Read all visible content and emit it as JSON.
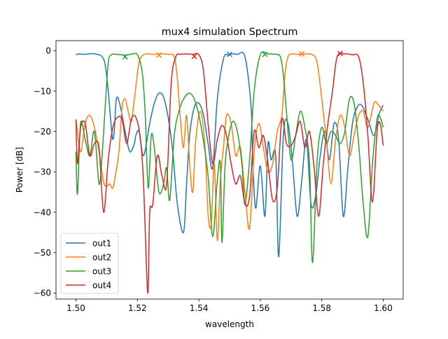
{
  "chart_data": {
    "type": "line",
    "title": "mux4 simulation Spectrum",
    "xlabel": "wavelength",
    "ylabel": "Power [dB]",
    "xlim": [
      1.4935,
      1.6065
    ],
    "ylim": [
      -61.5,
      2.5
    ],
    "xticks": [
      1.5,
      1.52,
      1.54,
      1.56,
      1.58,
      1.6
    ],
    "xtick_labels": [
      "1.50",
      "1.52",
      "1.54",
      "1.56",
      "1.58",
      "1.60"
    ],
    "yticks": [
      0,
      -10,
      -20,
      -30,
      -40,
      -50,
      -60
    ],
    "ytick_labels": [
      "0",
      "−10",
      "−20",
      "−30",
      "−40",
      "−50",
      "−60"
    ],
    "legend_position": "lower-left",
    "series": [
      {
        "name": "out1",
        "color": "#1f77b4",
        "x": [
          1.5,
          1.501,
          1.503,
          1.505,
          1.507,
          1.5085,
          1.5095,
          1.5105,
          1.5115,
          1.512,
          1.5125,
          1.513,
          1.5135,
          1.5145,
          1.516,
          1.5175,
          1.519,
          1.5195,
          1.5205,
          1.522,
          1.524,
          1.5255,
          1.527,
          1.5285,
          1.53,
          1.5315,
          1.533,
          1.535,
          1.536,
          1.537,
          1.5385,
          1.54,
          1.5415,
          1.543,
          1.5445,
          1.546,
          1.548,
          1.5495,
          1.551,
          1.5525,
          1.555,
          1.557,
          1.5575,
          1.5585,
          1.56,
          1.5615,
          1.5625,
          1.5635,
          1.565,
          1.566,
          1.5675,
          1.569,
          1.5705,
          1.572,
          1.5735,
          1.575,
          1.5765,
          1.578,
          1.5795,
          1.581,
          1.5825,
          1.584,
          1.5855,
          1.587,
          1.5885,
          1.59,
          1.5915,
          1.593,
          1.595,
          1.597,
          1.5985,
          1.6
        ],
        "y": [
          -1.0,
          -0.8,
          -0.9,
          -0.7,
          -0.9,
          -1.5,
          -3.5,
          -10.0,
          -19.0,
          -22.0,
          -19.5,
          -13.0,
          -11.5,
          -14.0,
          -20.0,
          -25.0,
          -23.0,
          -21.0,
          -20.0,
          -26.0,
          -18.0,
          -13.0,
          -10.5,
          -11.5,
          -16.5,
          -25.0,
          -38.0,
          -45.0,
          -33.0,
          -21.0,
          -14.0,
          -13.0,
          -16.0,
          -23.0,
          -29.0,
          -12.0,
          -2.0,
          -1.0,
          -0.8,
          -0.9,
          -1.5,
          -14.0,
          -27.0,
          -39.0,
          -28.5,
          -41.0,
          -23.0,
          -27.0,
          -26.0,
          -51.0,
          -21.0,
          -18.0,
          -28.0,
          -41.0,
          -32.0,
          -22.0,
          -38.0,
          -36.0,
          -26.0,
          -20.0,
          -27.0,
          -18.0,
          -22.0,
          -41.0,
          -29.0,
          -18.0,
          -14.0,
          -13.5,
          -17.0,
          -21.0,
          -16.0,
          -13.5
        ]
      },
      {
        "name": "out2",
        "color": "#ff7f0e",
        "x": [
          1.5,
          1.5015,
          1.503,
          1.5045,
          1.506,
          1.5075,
          1.509,
          1.51,
          1.511,
          1.512,
          1.513,
          1.514,
          1.515,
          1.516,
          1.517,
          1.518,
          1.519,
          1.5205,
          1.522,
          1.5235,
          1.525,
          1.5275,
          1.53,
          1.532,
          1.533,
          1.534,
          1.535,
          1.536,
          1.537,
          1.538,
          1.539,
          1.5405,
          1.542,
          1.543,
          1.544,
          1.545,
          1.546,
          1.547,
          1.548,
          1.549,
          1.5505,
          1.552,
          1.5535,
          1.555,
          1.5565,
          1.558,
          1.5595,
          1.561,
          1.5625,
          1.564,
          1.5655,
          1.567,
          1.568,
          1.569,
          1.5705,
          1.572,
          1.5745,
          1.577,
          1.5785,
          1.58,
          1.5815,
          1.583,
          1.5845,
          1.586,
          1.5875,
          1.589,
          1.5905,
          1.592,
          1.5935,
          1.595,
          1.597,
          1.5985,
          1.6
        ],
        "y": [
          -17.0,
          -25.0,
          -18.0,
          -16.0,
          -19.0,
          -25.0,
          -32.5,
          -33.5,
          -33.0,
          -34.0,
          -30.0,
          -25.0,
          -14.0,
          -12.0,
          -15.0,
          -17.5,
          -12.0,
          -3.0,
          -1.0,
          -0.8,
          -0.9,
          -0.8,
          -0.9,
          -1.5,
          -7.0,
          -17.0,
          -24.0,
          -16.0,
          -28.0,
          -35.0,
          -22.0,
          -15.0,
          -24.0,
          -40.5,
          -43.0,
          -28.0,
          -47.0,
          -32.0,
          -24.0,
          -16.0,
          -18.0,
          -26.0,
          -24.0,
          -35.0,
          -44.0,
          -25.0,
          -18.0,
          -24.0,
          -30.0,
          -28.0,
          -20.0,
          -16.0,
          -6.0,
          -1.5,
          -0.8,
          -0.9,
          -0.8,
          -1.0,
          -3.0,
          -12.0,
          -22.0,
          -33.0,
          -22.0,
          -16.0,
          -19.0,
          -26.0,
          -21.0,
          -16.0,
          -15.0,
          -19.0,
          -13.0,
          -13.5,
          -15.0
        ]
      },
      {
        "name": "out3",
        "color": "#2ca02c",
        "x": [
          1.5,
          1.5005,
          1.5015,
          1.503,
          1.5045,
          1.506,
          1.5075,
          1.5085,
          1.5095,
          1.5105,
          1.5115,
          1.5135,
          1.516,
          1.5185,
          1.52,
          1.5215,
          1.5225,
          1.5235,
          1.5245,
          1.5255,
          1.527,
          1.5285,
          1.5295,
          1.5305,
          1.532,
          1.5335,
          1.535,
          1.537,
          1.539,
          1.541,
          1.543,
          1.5445,
          1.546,
          1.547,
          1.5475,
          1.5485,
          1.5495,
          1.551,
          1.5525,
          1.554,
          1.555,
          1.5565,
          1.558,
          1.56,
          1.5625,
          1.565,
          1.5665,
          1.5675,
          1.5685,
          1.57,
          1.5715,
          1.573,
          1.5745,
          1.576,
          1.577,
          1.5785,
          1.58,
          1.5815,
          1.583,
          1.5845,
          1.586,
          1.5875,
          1.589,
          1.5905,
          1.592,
          1.5935,
          1.595,
          1.5965,
          1.598,
          1.599,
          1.6
        ],
        "y": [
          -25.0,
          -35.5,
          -18.0,
          -22.0,
          -26.0,
          -20.0,
          -33.0,
          -26.0,
          -14.0,
          -3.0,
          -1.0,
          -0.9,
          -1.1,
          -0.8,
          -1.0,
          -5.0,
          -15.0,
          -34.0,
          -21.0,
          -24.0,
          -35.0,
          -33.0,
          -29.0,
          -37.0,
          -21.0,
          -15.0,
          -12.0,
          -10.5,
          -13.0,
          -20.0,
          -31.0,
          -46.0,
          -32.0,
          -28.0,
          -47.5,
          -29.0,
          -22.0,
          -17.5,
          -20.0,
          -28.0,
          -38.0,
          -27.0,
          -10.0,
          -1.0,
          -0.8,
          -0.9,
          -1.5,
          -6.0,
          -15.0,
          -27.0,
          -21.0,
          -15.0,
          -19.0,
          -28.0,
          -52.5,
          -27.0,
          -19.0,
          -23.0,
          -20.0,
          -21.0,
          -23.0,
          -20.0,
          -12.0,
          -13.0,
          -23.0,
          -38.0,
          -46.0,
          -28.0,
          -17.0,
          -16.5,
          -19.0
        ]
      },
      {
        "name": "out4",
        "color": "#d62728",
        "x": [
          1.5,
          1.5005,
          1.5015,
          1.503,
          1.5045,
          1.506,
          1.5075,
          1.509,
          1.5105,
          1.512,
          1.5135,
          1.515,
          1.5165,
          1.518,
          1.5195,
          1.521,
          1.522,
          1.523,
          1.5235,
          1.524,
          1.525,
          1.5265,
          1.528,
          1.5295,
          1.531,
          1.5325,
          1.534,
          1.536,
          1.538,
          1.54,
          1.5415,
          1.543,
          1.5445,
          1.546,
          1.5475,
          1.549,
          1.5505,
          1.552,
          1.5535,
          1.555,
          1.5565,
          1.558,
          1.5595,
          1.561,
          1.5625,
          1.564,
          1.5655,
          1.567,
          1.5685,
          1.57,
          1.5715,
          1.573,
          1.5745,
          1.576,
          1.5775,
          1.579,
          1.5805,
          1.582,
          1.5835,
          1.585,
          1.5875,
          1.59,
          1.592,
          1.5935,
          1.595,
          1.5965,
          1.598,
          1.599,
          1.6
        ],
        "y": [
          -17.0,
          -28.0,
          -19.0,
          -18.0,
          -26.0,
          -23.0,
          -24.0,
          -40.0,
          -27.0,
          -19.0,
          -16.5,
          -17.0,
          -23.0,
          -17.0,
          -16.5,
          -22.0,
          -33.0,
          -55.0,
          -59.0,
          -40.0,
          -38.0,
          -26.0,
          -31.0,
          -33.0,
          -8.0,
          -1.5,
          -0.9,
          -0.8,
          -0.9,
          -1.0,
          -5.0,
          -18.0,
          -28.0,
          -22.0,
          -18.5,
          -21.0,
          -28.0,
          -33.0,
          -31.0,
          -38.0,
          -36.0,
          -20.0,
          -24.0,
          -21.0,
          -28.0,
          -37.0,
          -34.0,
          -17.0,
          -23.0,
          -23.5,
          -21.0,
          -17.5,
          -24.0,
          -20.0,
          -29.0,
          -41.0,
          -28.0,
          -18.0,
          -10.0,
          -1.5,
          -0.8,
          -1.0,
          -1.5,
          -8.0,
          -21.0,
          -37.5,
          -20.0,
          -18.0,
          -23.5
        ]
      }
    ],
    "markers": [
      {
        "series": "out1",
        "symbol": "x",
        "x": 1.55,
        "y": -0.9
      },
      {
        "series": "out2",
        "symbol": "x",
        "x": 1.527,
        "y": -1.1
      },
      {
        "series": "out2",
        "symbol": "x",
        "x": 1.5735,
        "y": -0.8
      },
      {
        "series": "out3",
        "symbol": "x",
        "x": 1.516,
        "y": -1.5
      },
      {
        "series": "out3",
        "symbol": "x",
        "x": 1.5615,
        "y": -0.9
      },
      {
        "series": "out4",
        "symbol": "x",
        "x": 1.5385,
        "y": -1.4
      },
      {
        "series": "out4",
        "symbol": "x",
        "x": 1.586,
        "y": -0.7
      }
    ]
  }
}
